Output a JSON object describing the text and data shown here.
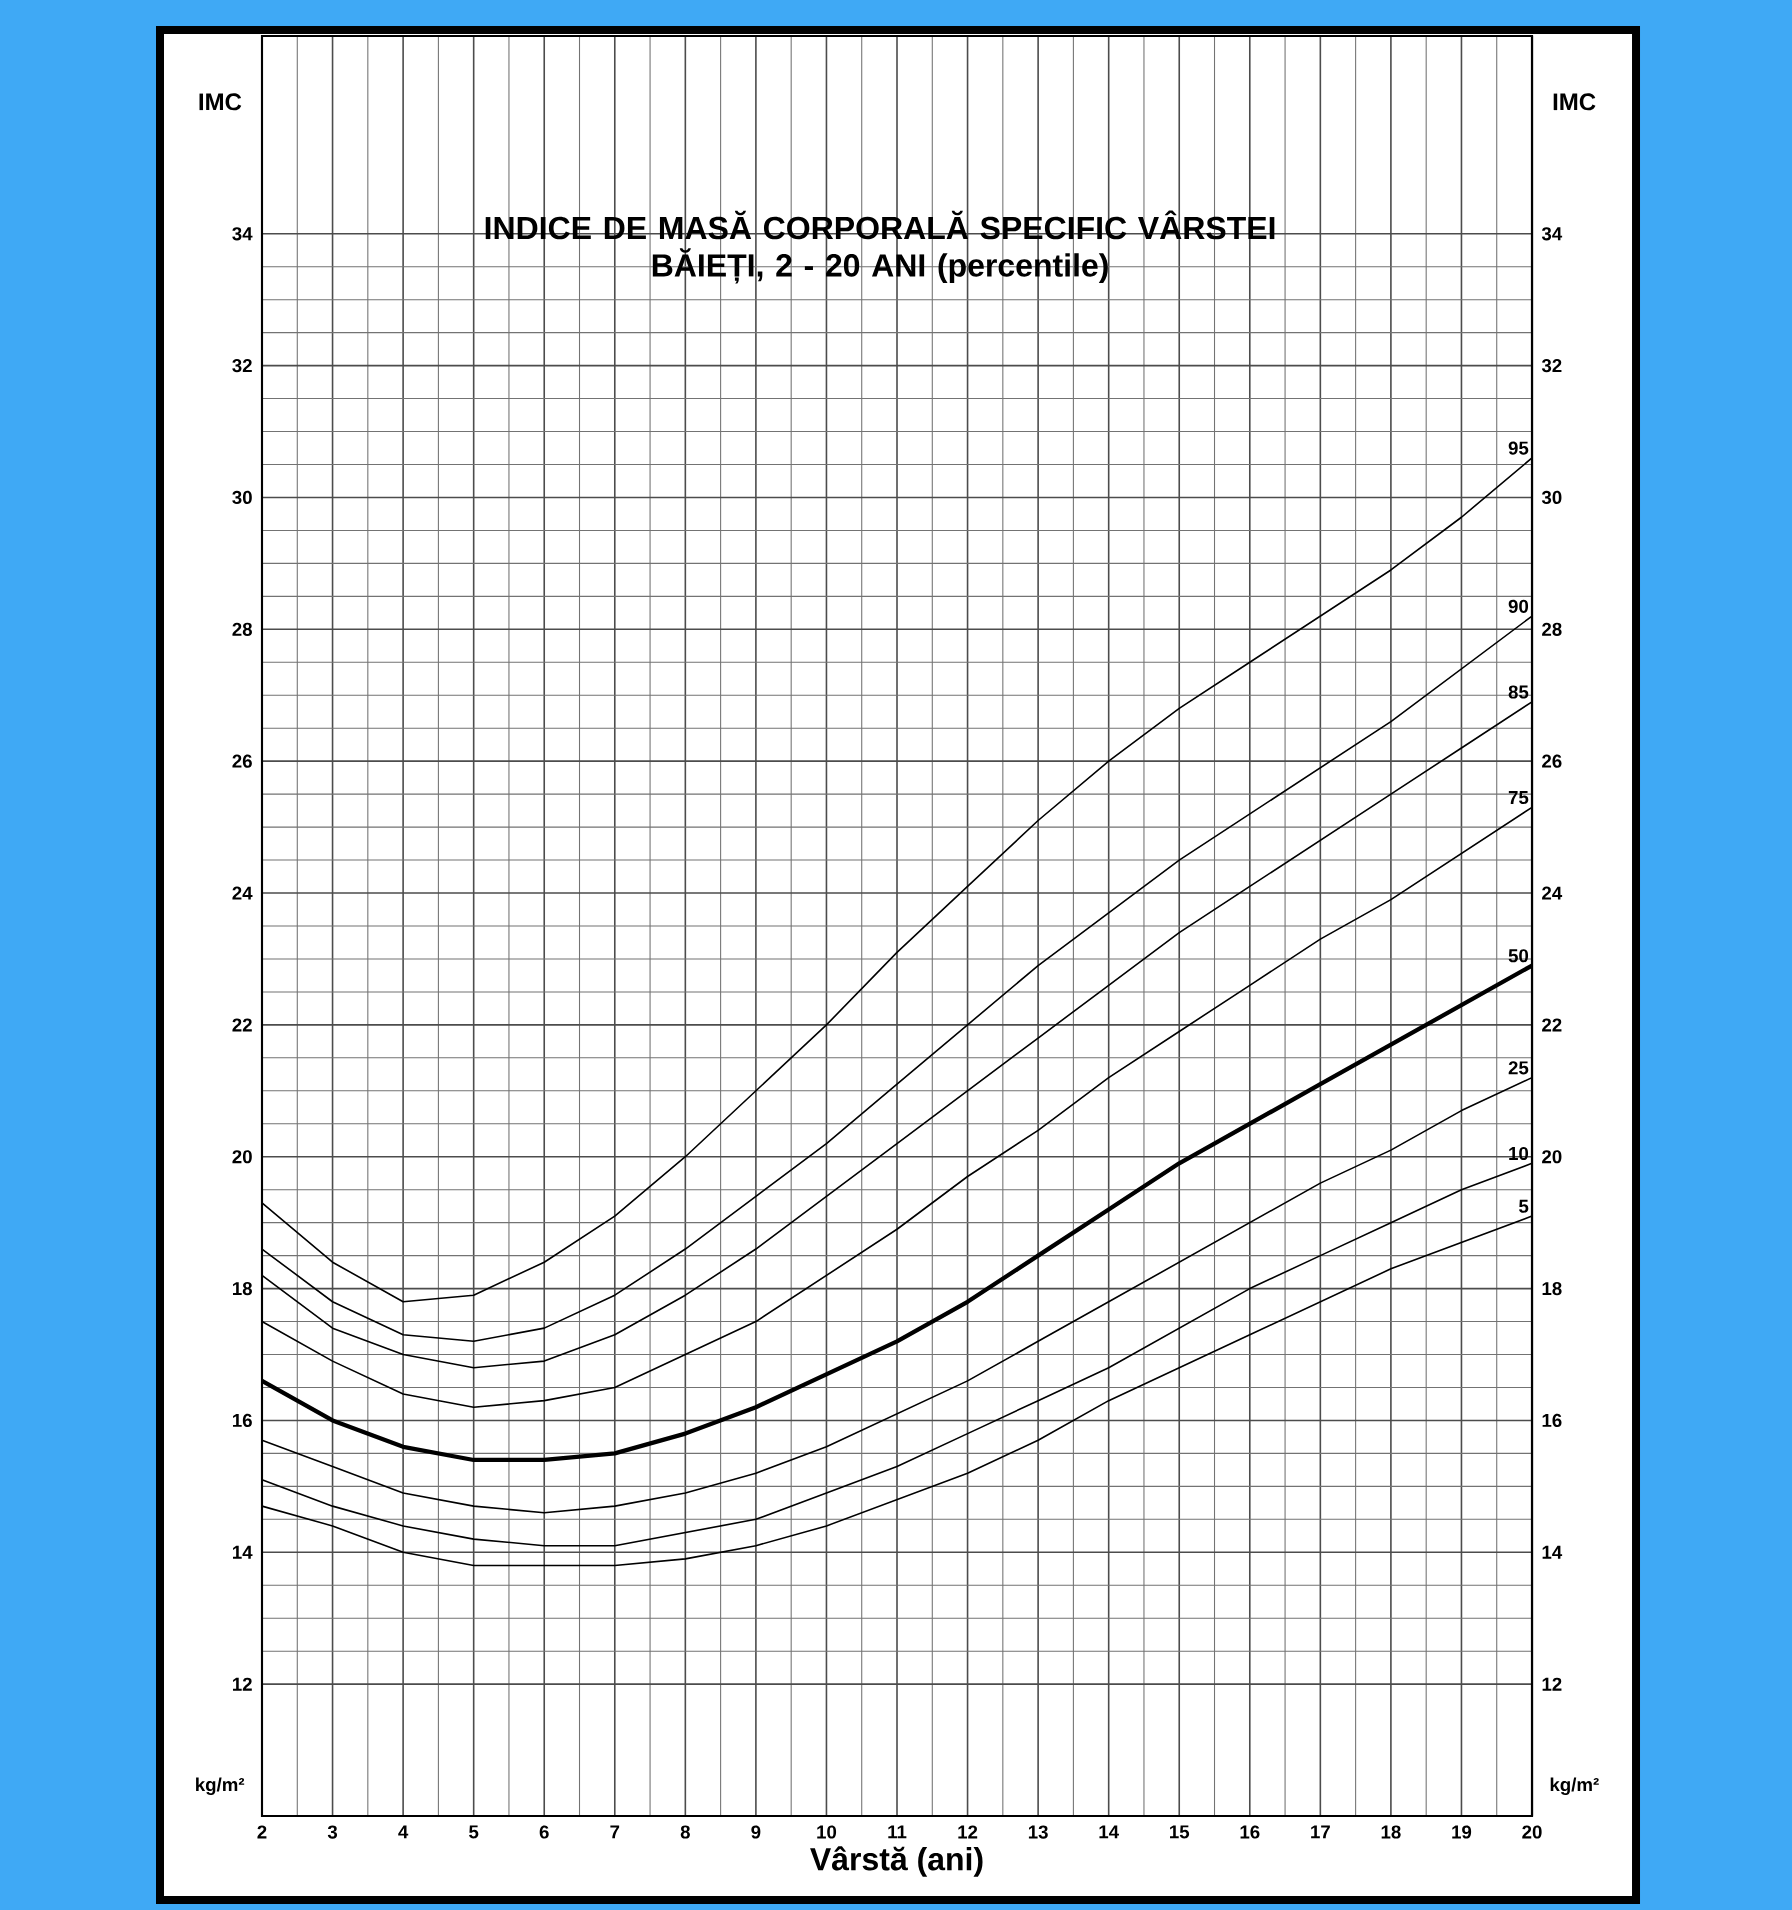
{
  "chart_data": {
    "type": "line",
    "title": "INDICE DE MASĂ CORPORALĂ SPECIFIC VÂRSTEI",
    "subtitle": "BĂIEȚI, 2 - 20 ANI (percentile)",
    "xlabel": "Vârstă (ani)",
    "ylabel": "IMC",
    "y2label": "IMC",
    "annotations": [
      "kg/m²",
      "kg/m²"
    ],
    "x": [
      2,
      3,
      4,
      5,
      6,
      7,
      8,
      9,
      10,
      11,
      12,
      13,
      14,
      15,
      16,
      17,
      18,
      19,
      20
    ],
    "series": [
      {
        "name": "95",
        "color": "#000000",
        "values": [
          19.3,
          18.4,
          17.8,
          17.9,
          18.4,
          19.1,
          20.0,
          21.0,
          22.0,
          23.1,
          24.1,
          25.1,
          26.0,
          26.8,
          27.5,
          28.2,
          28.9,
          29.7,
          30.6
        ]
      },
      {
        "name": "90",
        "color": "#000000",
        "values": [
          18.6,
          17.8,
          17.3,
          17.2,
          17.4,
          17.9,
          18.6,
          19.4,
          20.2,
          21.1,
          22.0,
          22.9,
          23.7,
          24.5,
          25.2,
          25.9,
          26.6,
          27.4,
          28.2
        ]
      },
      {
        "name": "85",
        "color": "#000000",
        "values": [
          18.2,
          17.4,
          17.0,
          16.8,
          16.9,
          17.3,
          17.9,
          18.6,
          19.4,
          20.2,
          21.0,
          21.8,
          22.6,
          23.4,
          24.1,
          24.8,
          25.5,
          26.2,
          26.9
        ]
      },
      {
        "name": "75",
        "color": "#000000",
        "values": [
          17.5,
          16.9,
          16.4,
          16.2,
          16.3,
          16.5,
          17.0,
          17.5,
          18.2,
          18.9,
          19.7,
          20.4,
          21.2,
          21.9,
          22.6,
          23.3,
          23.9,
          24.6,
          25.3
        ]
      },
      {
        "name": "50",
        "color": "#000000",
        "values": [
          16.6,
          16.0,
          15.6,
          15.4,
          15.4,
          15.5,
          15.8,
          16.2,
          16.7,
          17.2,
          17.8,
          18.5,
          19.2,
          19.9,
          20.5,
          21.1,
          21.7,
          22.3,
          22.9
        ]
      },
      {
        "name": "25",
        "color": "#000000",
        "values": [
          15.7,
          15.3,
          14.9,
          14.7,
          14.6,
          14.7,
          14.9,
          15.2,
          15.6,
          16.1,
          16.6,
          17.2,
          17.8,
          18.4,
          19.0,
          19.6,
          20.1,
          20.7,
          21.2
        ]
      },
      {
        "name": "10",
        "color": "#000000",
        "values": [
          15.1,
          14.7,
          14.4,
          14.2,
          14.1,
          14.1,
          14.3,
          14.5,
          14.9,
          15.3,
          15.8,
          16.3,
          16.8,
          17.4,
          18.0,
          18.5,
          19.0,
          19.5,
          19.9
        ]
      },
      {
        "name": "5",
        "color": "#000000",
        "values": [
          14.7,
          14.4,
          14.0,
          13.8,
          13.8,
          13.8,
          13.9,
          14.1,
          14.4,
          14.8,
          15.2,
          15.7,
          16.3,
          16.8,
          17.3,
          17.8,
          18.3,
          18.7,
          19.1
        ]
      }
    ],
    "xlim": [
      2,
      20
    ],
    "xticks": [
      2,
      3,
      4,
      5,
      6,
      7,
      8,
      9,
      10,
      11,
      12,
      13,
      14,
      15,
      16,
      17,
      18,
      19,
      20
    ],
    "ylim": [
      10,
      37
    ],
    "yticks": [
      12,
      14,
      16,
      18,
      20,
      22,
      24,
      26,
      28,
      30,
      32,
      34
    ],
    "y2lim": [
      10,
      37
    ],
    "y2ticks": [
      12,
      14,
      16,
      18,
      20,
      22,
      24,
      26,
      28,
      30,
      32,
      34
    ],
    "grid": true,
    "line_style": "solid"
  }
}
